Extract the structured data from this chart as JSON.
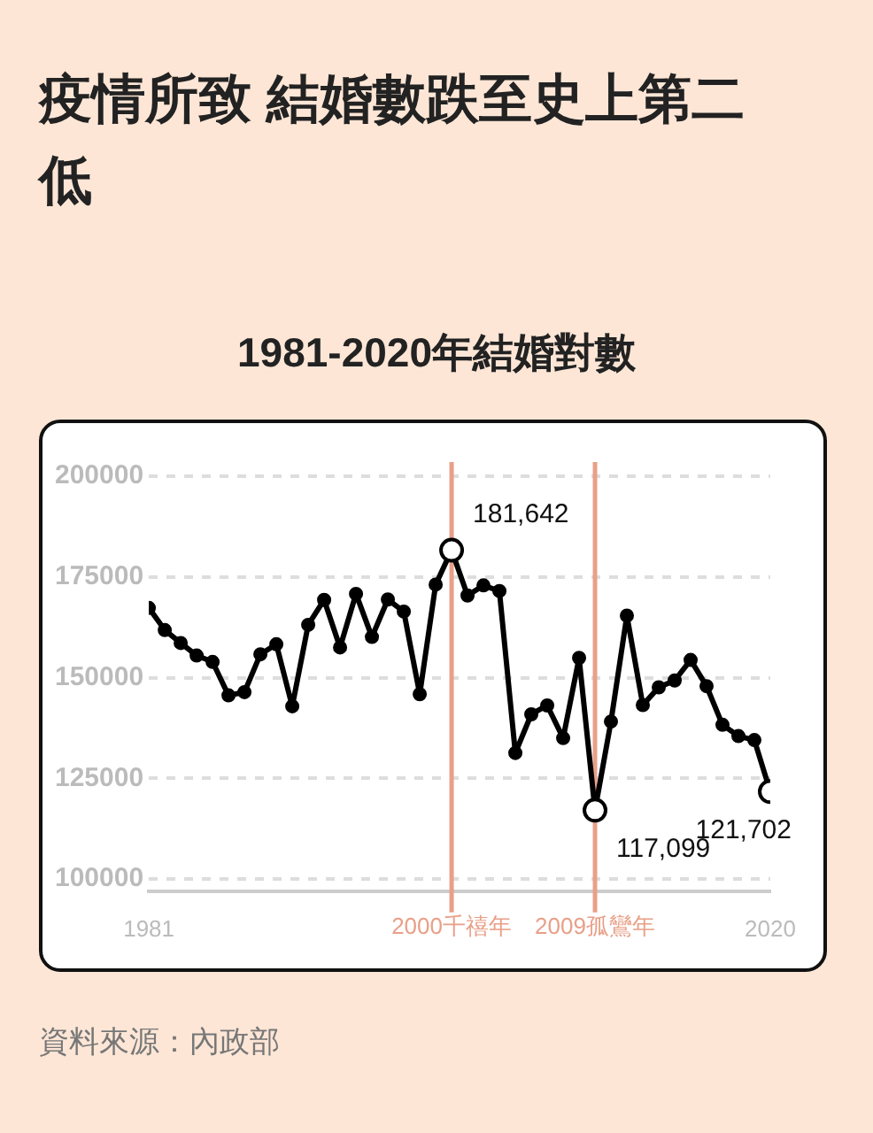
{
  "chart_data": {
    "type": "line",
    "title": "疫情所致 結婚數跌至史上第二低",
    "subtitle": "1981-2020年結婚對數",
    "x": [
      1981,
      1982,
      1983,
      1984,
      1985,
      1986,
      1987,
      1988,
      1989,
      1990,
      1991,
      1992,
      1993,
      1994,
      1995,
      1996,
      1997,
      1998,
      1999,
      2000,
      2001,
      2002,
      2003,
      2004,
      2005,
      2006,
      2007,
      2008,
      2009,
      2010,
      2011,
      2012,
      2013,
      2014,
      2015,
      2016,
      2017,
      2018,
      2019,
      2020
    ],
    "series": [
      {
        "color": "#000000",
        "values": [
          167300,
          161800,
          158600,
          155500,
          153900,
          145600,
          146400,
          155800,
          158300,
          142900,
          163100,
          169300,
          157500,
          170800,
          160100,
          169400,
          166400,
          145900,
          173100,
          181642,
          170400,
          172900,
          171500,
          131300,
          140900,
          143100,
          135000,
          154900,
          117099,
          139100,
          165400,
          143200,
          147600,
          149300,
          154400,
          147900,
          138300,
          135500,
          134500,
          121702
        ]
      }
    ],
    "xlim": [
      1981,
      2020
    ],
    "xticks": [
      1981,
      2020
    ],
    "ylim": [
      97000,
      200000
    ],
    "yticks": [
      100000,
      125000,
      150000,
      175000,
      200000
    ],
    "grid": "y",
    "legend": false,
    "marker": "circle",
    "line_style": "solid",
    "ref_lines": [
      {
        "axis": "x",
        "value": 2000,
        "label": "2000千禧年",
        "color": "#e8a088"
      },
      {
        "axis": "x",
        "value": 2009,
        "label": "2009孤鸞年",
        "color": "#e8a088"
      }
    ],
    "annotations": [
      {
        "text": "181,642",
        "x": 2000,
        "y": 181642
      },
      {
        "text": "117,099",
        "x": 2009,
        "y": 117099
      },
      {
        "text": "121,702",
        "x": 2020,
        "y": 121702
      },
      "資料來源：內政部"
    ]
  }
}
